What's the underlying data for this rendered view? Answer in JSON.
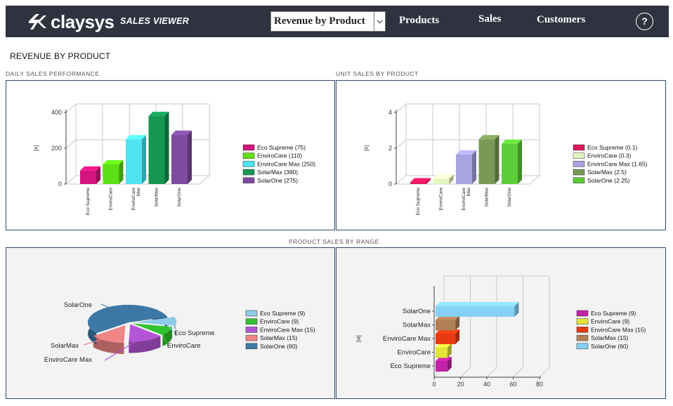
{
  "header": {
    "brand": "claysys",
    "app_title": "SALES VIEWER",
    "view_select": "Revenue by Product",
    "nav": [
      "Products",
      "Sales",
      "Customers"
    ],
    "help_label": "?"
  },
  "page": {
    "title": "REVENUE BY PRODUCT"
  },
  "sections": {
    "daily": "DAILY SALES PERFORMANCE",
    "unit": "UNIT SALES BY PRODUCT",
    "range": "PRODUCT SALES BY RANGE"
  },
  "chart_data": [
    {
      "id": "daily",
      "type": "bar",
      "ylabel": "[K]",
      "ylim": [
        0,
        400
      ],
      "yticks": [
        "0",
        "200",
        "400"
      ],
      "categories": [
        "Eco Supreme",
        "EnviroCare",
        "EnviroCare Max",
        "SolarMax",
        "SolarOne"
      ],
      "values": [
        75,
        110,
        250,
        380,
        275
      ],
      "legend": [
        "Eco Supreme (75)",
        "EnviroCare (110)",
        "EnviroCare Max (250)",
        "SolarMax (380)",
        "SolarOne (275)"
      ],
      "colors": [
        "#d4147f",
        "#5ee018",
        "#4fe3f2",
        "#159653",
        "#7e4ba0"
      ]
    },
    {
      "id": "unit",
      "type": "bar",
      "ylabel": "[K]",
      "ylim": [
        0,
        4
      ],
      "yticks": [
        "0",
        "2",
        "4"
      ],
      "categories": [
        "Eco Supreme",
        "EnviroCare",
        "EnviroCare Max",
        "SolarMax",
        "SolarOne"
      ],
      "values": [
        0.1,
        0.3,
        1.65,
        2.5,
        2.25
      ],
      "legend": [
        "Eco Supreme (0.1)",
        "EnviroCare (0.3)",
        "EnviroCare Max (1.65)",
        "SolarMax (2.5)",
        "SolarOne (2.25)"
      ],
      "colors": [
        "#e0195f",
        "#e3f5c0",
        "#a9a3e2",
        "#799956",
        "#5ccd39"
      ]
    },
    {
      "id": "range-pie",
      "type": "pie",
      "categories": [
        "Eco Supreme",
        "EnviroCare",
        "EnviroCare Max",
        "SolarMax",
        "SolarOne"
      ],
      "values": [
        9,
        9,
        15,
        15,
        60
      ],
      "legend": [
        "Eco Supreme (9)",
        "EnviroCare (9)",
        "EnviroCare Max (15)",
        "SolarMax (15)",
        "SolarOne (60)"
      ],
      "colors": [
        "#8ecbe8",
        "#31c231",
        "#b455d6",
        "#f08585",
        "#3d78a4"
      ]
    },
    {
      "id": "range-bar",
      "type": "bar",
      "orientation": "horizontal",
      "ylabel": "[M]",
      "xlim": [
        0,
        80
      ],
      "xticks": [
        "0",
        "20",
        "40",
        "60",
        "80"
      ],
      "categories": [
        "Eco Supreme",
        "EnviroCare",
        "EnviroCare Max",
        "SolarMax",
        "SolarOne"
      ],
      "values": [
        9,
        9,
        15,
        15,
        60
      ],
      "legend": [
        "Eco Supreme (9)",
        "EnviroCare (9)",
        "EnviroCare Max (15)",
        "SolarMax (15)",
        "SolarOne (60)"
      ],
      "colors": [
        "#c322a6",
        "#e3e33a",
        "#e63a13",
        "#b07f55",
        "#86cff5"
      ]
    }
  ]
}
